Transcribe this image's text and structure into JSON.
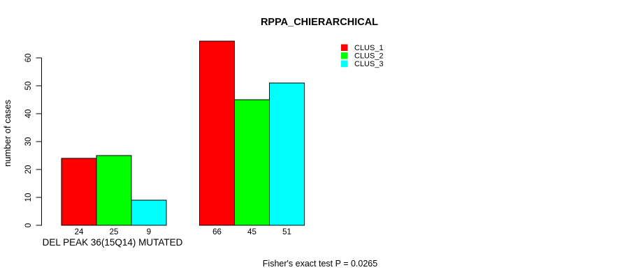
{
  "chart_data": {
    "type": "bar",
    "title": "RPPA_CHIERARCHICAL",
    "ylabel": "number of cases",
    "xlabel": "DEL PEAK 36(15Q14) MUTATED",
    "footnote": "Fisher's exact test P = 0.0265",
    "yticks": [
      0,
      10,
      20,
      30,
      40,
      50,
      60
    ],
    "ylim": [
      0,
      66
    ],
    "grid": false,
    "legend_position": "top-right",
    "series": [
      {
        "name": "CLUS_1",
        "color": "#ff0000"
      },
      {
        "name": "CLUS_2",
        "color": "#00ff00"
      },
      {
        "name": "CLUS_3",
        "color": "#00ffff"
      }
    ],
    "groups": [
      {
        "label": "DEL PEAK 36(15Q14) MUTATED",
        "values": [
          24,
          25,
          9
        ]
      },
      {
        "label": "",
        "values": [
          66,
          45,
          51
        ]
      }
    ],
    "colors": {
      "bar_border": "#000000",
      "axis": "#000000",
      "text": "#000000",
      "background": "#ffffff"
    }
  }
}
